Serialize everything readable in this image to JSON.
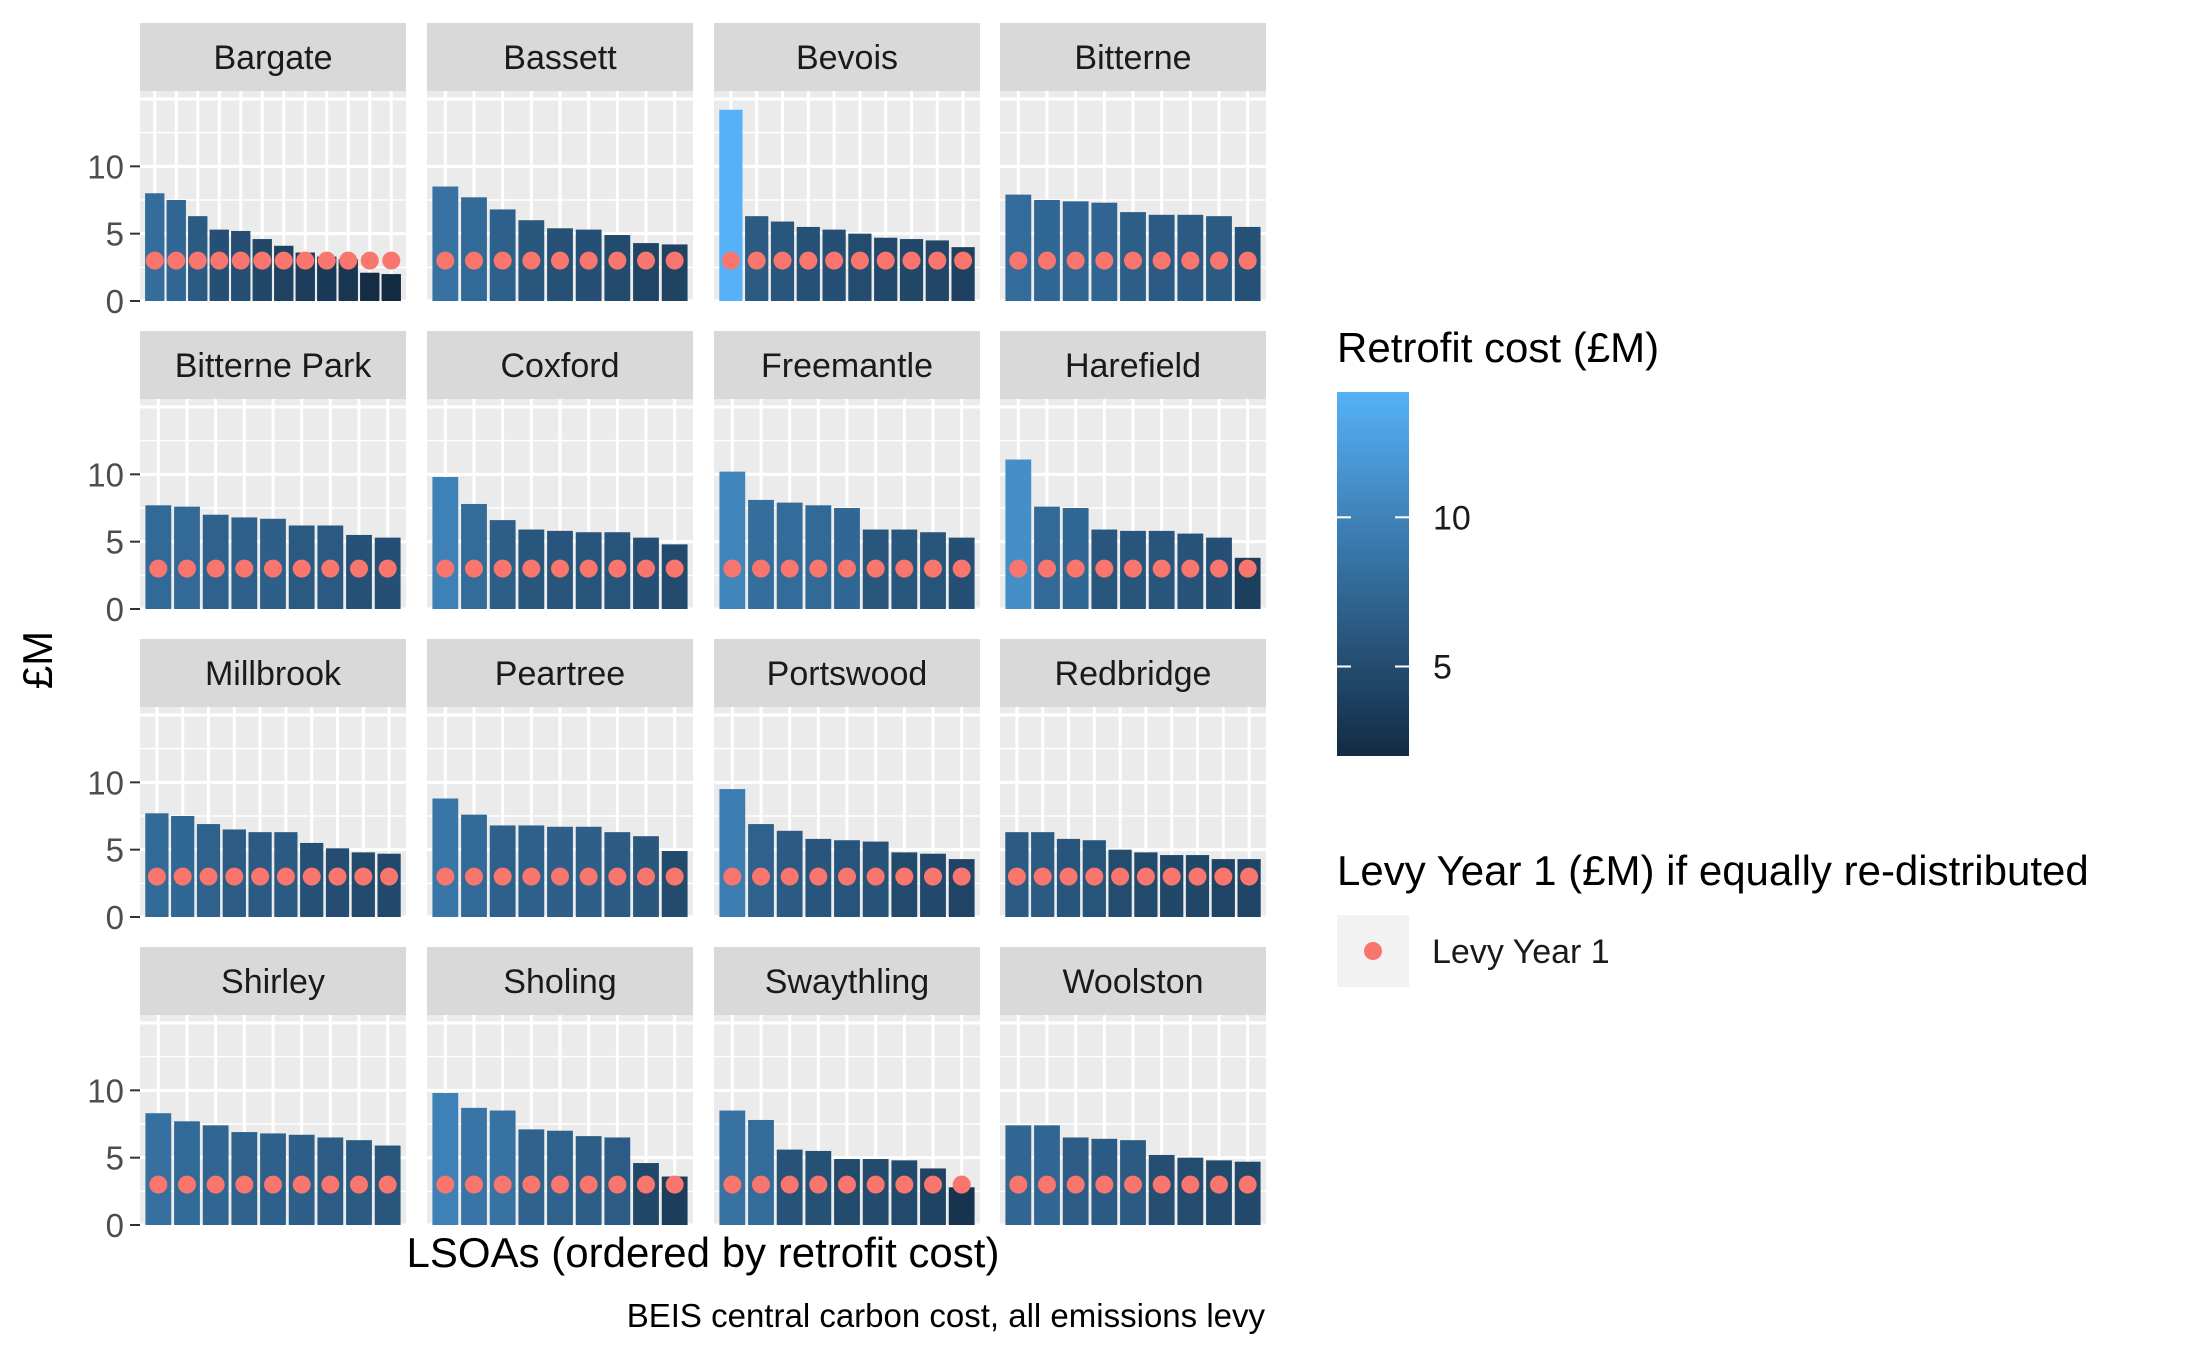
{
  "chart_data": {
    "type": "bar",
    "facets": [
      "Bargate",
      "Bassett",
      "Bevois",
      "Bitterne",
      "Bitterne Park",
      "Coxford",
      "Freemantle",
      "Harefield",
      "Millbrook",
      "Peartree",
      "Portswood",
      "Redbridge",
      "Shirley",
      "Sholing",
      "Swaythling",
      "Woolston"
    ],
    "panels": [
      {
        "name": "Bargate",
        "values": [
          8.0,
          7.5,
          6.3,
          5.3,
          5.2,
          4.6,
          4.1,
          3.6,
          3.3,
          3.1,
          2.1,
          2.0
        ],
        "levy": [
          3,
          3,
          3,
          3,
          3,
          3,
          3,
          3,
          3,
          3,
          3,
          3
        ]
      },
      {
        "name": "Bassett",
        "values": [
          8.5,
          7.7,
          6.8,
          6.0,
          5.4,
          5.3,
          4.9,
          4.3,
          4.2
        ],
        "levy": [
          3,
          3,
          3,
          3,
          3,
          3,
          3,
          3,
          3
        ]
      },
      {
        "name": "Bevois",
        "values": [
          14.2,
          6.3,
          5.9,
          5.5,
          5.3,
          5.0,
          4.7,
          4.6,
          4.5,
          4.0
        ],
        "levy": [
          3,
          3,
          3,
          3,
          3,
          3,
          3,
          3,
          3,
          3
        ]
      },
      {
        "name": "Bitterne",
        "values": [
          7.9,
          7.5,
          7.4,
          7.3,
          6.6,
          6.4,
          6.4,
          6.3,
          5.5
        ],
        "levy": [
          3,
          3,
          3,
          3,
          3,
          3,
          3,
          3,
          3
        ]
      },
      {
        "name": "Bitterne Park",
        "values": [
          7.7,
          7.6,
          7.0,
          6.8,
          6.7,
          6.2,
          6.2,
          5.5,
          5.3
        ],
        "levy": [
          3,
          3,
          3,
          3,
          3,
          3,
          3,
          3,
          3
        ]
      },
      {
        "name": "Coxford",
        "values": [
          9.8,
          7.8,
          6.6,
          5.9,
          5.8,
          5.7,
          5.7,
          5.3,
          4.8
        ],
        "levy": [
          3,
          3,
          3,
          3,
          3,
          3,
          3,
          3,
          3
        ]
      },
      {
        "name": "Freemantle",
        "values": [
          10.2,
          8.1,
          7.9,
          7.7,
          7.5,
          5.9,
          5.9,
          5.7,
          5.3
        ],
        "levy": [
          3,
          3,
          3,
          3,
          3,
          3,
          3,
          3,
          3
        ]
      },
      {
        "name": "Harefield",
        "values": [
          11.1,
          7.6,
          7.5,
          5.9,
          5.8,
          5.8,
          5.6,
          5.3,
          3.8
        ],
        "levy": [
          3,
          3,
          3,
          3,
          3,
          3,
          3,
          3,
          3
        ]
      },
      {
        "name": "Millbrook",
        "values": [
          7.7,
          7.5,
          6.9,
          6.5,
          6.3,
          6.3,
          5.5,
          5.1,
          4.8,
          4.7
        ],
        "levy": [
          3,
          3,
          3,
          3,
          3,
          3,
          3,
          3,
          3,
          3
        ]
      },
      {
        "name": "Peartree",
        "values": [
          8.8,
          7.6,
          6.8,
          6.8,
          6.7,
          6.7,
          6.3,
          6.0,
          4.9
        ],
        "levy": [
          3,
          3,
          3,
          3,
          3,
          3,
          3,
          3,
          3
        ]
      },
      {
        "name": "Portswood",
        "values": [
          9.5,
          6.9,
          6.4,
          5.8,
          5.7,
          5.6,
          4.8,
          4.7,
          4.3
        ],
        "levy": [
          3,
          3,
          3,
          3,
          3,
          3,
          3,
          3,
          3
        ]
      },
      {
        "name": "Redbridge",
        "values": [
          6.3,
          6.3,
          5.8,
          5.7,
          5.0,
          4.8,
          4.6,
          4.6,
          4.3,
          4.3
        ],
        "levy": [
          3,
          3,
          3,
          3,
          3,
          3,
          3,
          3,
          3,
          3
        ]
      },
      {
        "name": "Shirley",
        "values": [
          8.3,
          7.7,
          7.4,
          6.9,
          6.8,
          6.7,
          6.5,
          6.3,
          5.9
        ],
        "levy": [
          3,
          3,
          3,
          3,
          3,
          3,
          3,
          3,
          3
        ]
      },
      {
        "name": "Sholing",
        "values": [
          9.8,
          8.7,
          8.5,
          7.1,
          7.0,
          6.6,
          6.5,
          4.6,
          3.6
        ],
        "levy": [
          3,
          3,
          3,
          3,
          3,
          3,
          3,
          3,
          3
        ]
      },
      {
        "name": "Swaythling",
        "values": [
          8.5,
          7.8,
          5.6,
          5.5,
          4.9,
          4.9,
          4.8,
          4.2,
          2.8
        ],
        "levy": [
          3,
          3,
          3,
          3,
          3,
          3,
          3,
          3,
          3
        ]
      },
      {
        "name": "Woolston",
        "values": [
          7.4,
          7.4,
          6.5,
          6.4,
          6.3,
          5.2,
          5.0,
          4.8,
          4.7
        ],
        "levy": [
          3,
          3,
          3,
          3,
          3,
          3,
          3,
          3,
          3
        ]
      }
    ],
    "ylabel": "£M",
    "xlabel": "LSOAs (ordered by retrofit cost)",
    "caption": "BEIS central carbon cost, all emissions levy",
    "ylim": [
      0,
      15
    ],
    "y_ticks": [
      0,
      5,
      10
    ],
    "y_tick_labels": [
      "0",
      "5",
      "10"
    ],
    "grid": true,
    "legend": {
      "placement": "right",
      "fill_title": "Retrofit cost (£M)",
      "fill_range": [
        2,
        14.2
      ],
      "fill_ticks": [
        5,
        10
      ],
      "fill_tick_labels": [
        "5",
        "10"
      ],
      "fill_low_color": "#132B43",
      "fill_high_color": "#56B1F7",
      "point_title": "Levy Year 1 (£M) if equally re-distributed",
      "point_label": "Levy Year 1",
      "point_color": "#F8766D"
    },
    "panel_background": "#EBEBEB",
    "strip_background": "#D9D9D9"
  }
}
